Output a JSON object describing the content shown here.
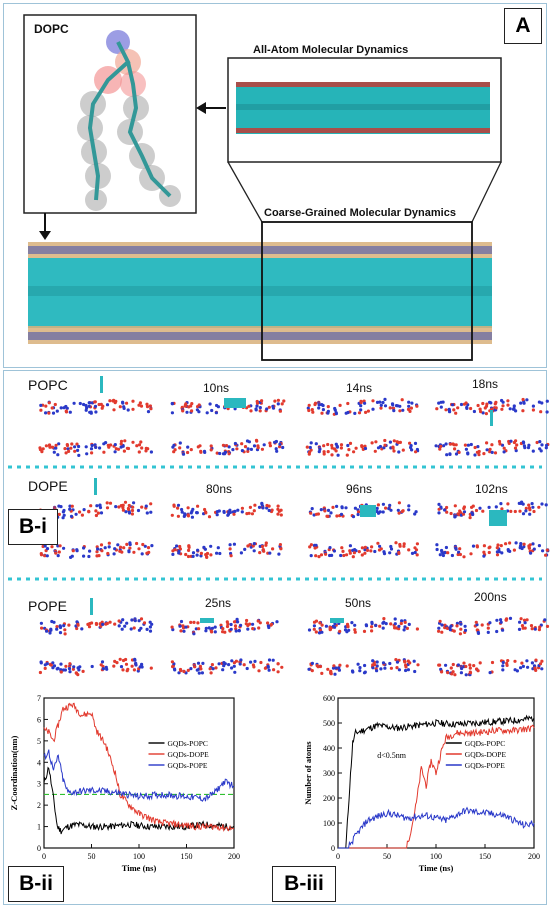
{
  "panel_a": {
    "label": "A",
    "dopc_title": "DOPC",
    "aa_title": "All-Atom Molecular Dynamics",
    "cg_title": "Coarse-Grained Molecular Dynamics"
  },
  "panel_b": {
    "bi_label": "B-i",
    "bii_label": "B-ii",
    "biii_label": "B-iii",
    "rows": [
      {
        "lipid": "POPC",
        "times": [
          "10ns",
          "14ns",
          "18ns"
        ]
      },
      {
        "lipid": "DOPE",
        "times": [
          "80ns",
          "96ns",
          "102ns"
        ]
      },
      {
        "lipid": "POPE",
        "times": [
          "25ns",
          "50ns",
          "200ns"
        ]
      }
    ]
  },
  "colors": {
    "cyan": "#2bb8bf",
    "red": "#e23a2e",
    "blue": "#2a39c9",
    "black": "#000000",
    "green_dashed": "#30c030",
    "panel_border": "#9fc3d8"
  },
  "chart_data": [
    {
      "type": "line",
      "xlabel": "Time (ns)",
      "ylabel": "Z-Coordination(nm)",
      "xlim": [
        0,
        200
      ],
      "ylim": [
        0,
        7
      ],
      "xticks": [
        0,
        50,
        100,
        150,
        200
      ],
      "yticks": [
        0,
        1,
        2,
        3,
        4,
        5,
        6,
        7
      ],
      "legend_position": "right",
      "reference_line": {
        "y": 2.5,
        "style": "dashed",
        "color": "#30c030"
      },
      "series": [
        {
          "name": "GQDs-POPC",
          "color": "#000000",
          "x": [
            0,
            5,
            10,
            14,
            18,
            25,
            35,
            50,
            70,
            90,
            110,
            130,
            150,
            170,
            190,
            200
          ],
          "y": [
            3.0,
            3.8,
            2.3,
            1.0,
            0.8,
            1.0,
            1.1,
            1.0,
            1.0,
            1.1,
            1.0,
            1.0,
            1.0,
            1.1,
            1.0,
            1.0
          ]
        },
        {
          "name": "GQDs-DOPE",
          "color": "#e23a2e",
          "x": [
            0,
            5,
            10,
            20,
            30,
            40,
            50,
            55,
            65,
            75,
            80,
            90,
            100,
            110,
            120,
            140,
            160,
            180,
            200
          ],
          "y": [
            5.5,
            5.4,
            5.0,
            6.5,
            6.7,
            6.2,
            6.3,
            5.5,
            4.8,
            3.5,
            2.5,
            2.0,
            1.6,
            1.4,
            1.2,
            1.1,
            1.0,
            1.0,
            0.9
          ]
        },
        {
          "name": "GQDs-POPE",
          "color": "#2a39c9",
          "x": [
            0,
            5,
            10,
            15,
            20,
            25,
            30,
            50,
            75,
            100,
            125,
            150,
            170,
            180,
            190,
            200
          ],
          "y": [
            4.2,
            4.5,
            3.6,
            4.3,
            3.2,
            2.6,
            2.6,
            2.7,
            2.6,
            2.4,
            2.5,
            2.4,
            2.3,
            2.6,
            3.1,
            2.9
          ]
        }
      ]
    },
    {
      "type": "line",
      "xlabel": "Time (ns)",
      "ylabel": "Number of atoms",
      "xlim": [
        0,
        200
      ],
      "ylim": [
        0,
        600
      ],
      "xticks": [
        0,
        50,
        100,
        150,
        200
      ],
      "yticks": [
        0,
        100,
        200,
        300,
        400,
        500,
        600
      ],
      "legend_position": "right",
      "annotation": "d<0.5nm",
      "series": [
        {
          "name": "GQDs-POPC",
          "color": "#000000",
          "x": [
            0,
            8,
            12,
            15,
            18,
            25,
            40,
            60,
            80,
            100,
            120,
            140,
            160,
            180,
            200
          ],
          "y": [
            0,
            0,
            250,
            420,
            460,
            470,
            490,
            480,
            490,
            500,
            495,
            500,
            505,
            510,
            520
          ]
        },
        {
          "name": "GQDs-DOPE",
          "color": "#e23a2e",
          "x": [
            0,
            70,
            76,
            80,
            85,
            90,
            95,
            100,
            105,
            110,
            120,
            140,
            160,
            180,
            200
          ],
          "y": [
            0,
            0,
            100,
            180,
            320,
            250,
            350,
            300,
            380,
            440,
            460,
            460,
            470,
            470,
            480
          ]
        },
        {
          "name": "GQDs-POPE",
          "color": "#2a39c9",
          "x": [
            0,
            10,
            15,
            20,
            30,
            50,
            70,
            90,
            110,
            130,
            150,
            170,
            190,
            200
          ],
          "y": [
            0,
            0,
            30,
            60,
            110,
            140,
            120,
            130,
            110,
            150,
            140,
            130,
            90,
            100
          ]
        }
      ]
    }
  ]
}
